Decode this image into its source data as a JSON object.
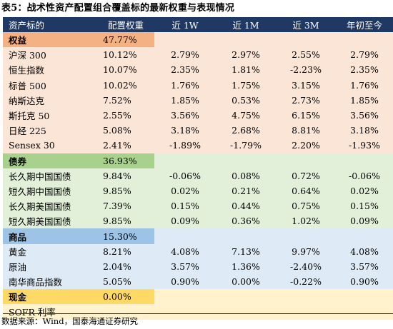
{
  "title": "表5：战术性资产配置组合覆盖标的最新权重与表现情况",
  "headers": [
    "资产标的",
    "配置权重",
    "近 1W",
    "近 1M",
    "近 3M",
    "年初至今"
  ],
  "rows": [
    {
      "name": "权益",
      "weight": "47.77%",
      "w1": "",
      "m1": "",
      "m3": "",
      "ytd": ""
    },
    {
      "name": "沪深 300",
      "weight": "10.12%",
      "w1": "2.79%",
      "m1": "2.97%",
      "m3": "2.55%",
      "ytd": "2.79%"
    },
    {
      "name": "恒生指数",
      "weight": "10.07%",
      "w1": "2.35%",
      "m1": "1.81%",
      "m3": "-2.23%",
      "ytd": "2.35%"
    },
    {
      "name": "标普 500",
      "weight": "10.02%",
      "w1": "1.76%",
      "m1": "1.75%",
      "m3": "3.15%",
      "ytd": "1.76%"
    },
    {
      "name": "纳斯达克",
      "weight": "7.52%",
      "w1": "1.85%",
      "m1": "0.53%",
      "m3": "2.73%",
      "ytd": "1.85%"
    },
    {
      "name": "斯托克 50",
      "weight": "2.55%",
      "w1": "3.56%",
      "m1": "4.75%",
      "m3": "6.15%",
      "ytd": "3.56%"
    },
    {
      "name": "日经 225",
      "weight": "5.08%",
      "w1": "3.18%",
      "m1": "2.68%",
      "m3": "8.81%",
      "ytd": "3.18%"
    },
    {
      "name": "Sensex 30",
      "weight": "2.41%",
      "w1": "-1.89%",
      "m1": "-1.79%",
      "m3": "2.20%",
      "ytd": "-1.93%"
    },
    {
      "name": "债券",
      "weight": "36.93%",
      "w1": "",
      "m1": "",
      "m3": "",
      "ytd": ""
    },
    {
      "name": "长久期中国国债",
      "weight": "9.84%",
      "w1": "-0.06%",
      "m1": "0.08%",
      "m3": "0.72%",
      "ytd": "-0.06%"
    },
    {
      "name": "短久期中国国债",
      "weight": "9.85%",
      "w1": "0.02%",
      "m1": "0.21%",
      "m3": "0.64%",
      "ytd": "0.02%"
    },
    {
      "name": "长久期美国国债",
      "weight": "7.39%",
      "w1": "0.15%",
      "m1": "0.44%",
      "m3": "0.75%",
      "ytd": "0.15%"
    },
    {
      "name": "短久期美国国债",
      "weight": "9.85%",
      "w1": "0.09%",
      "m1": "0.36%",
      "m3": "1.02%",
      "ytd": "0.09%"
    },
    {
      "name": "商品",
      "weight": "15.30%",
      "w1": "",
      "m1": "",
      "m3": "",
      "ytd": ""
    },
    {
      "name": "黄金",
      "weight": "8.21%",
      "w1": "4.08%",
      "m1": "7.13%",
      "m3": "9.97%",
      "ytd": "4.08%"
    },
    {
      "name": "原油",
      "weight": "2.04%",
      "w1": "3.57%",
      "m1": "1.36%",
      "m3": "-2.40%",
      "ytd": "3.57%"
    },
    {
      "name": "南华商品指数",
      "weight": "5.05%",
      "w1": "0.90%",
      "m1": "0.00%",
      "m3": "-0.22%",
      "ytd": "0.90%"
    },
    {
      "name": "现金",
      "weight": "0.00%",
      "w1": "",
      "m1": "",
      "m3": "",
      "ytd": ""
    },
    {
      "name": "SOFR 利率",
      "weight": "",
      "w1": "",
      "m1": "",
      "m3": "",
      "ytd": ""
    }
  ],
  "source": "数据来源：Wind，国泰海通证券研究",
  "colors": {
    "header": "#1f3864",
    "equity_category": "#f4b183",
    "equity_row": "#fbe5d6",
    "bond_category": "#a9d18e",
    "bond_row": "#e2f0d9",
    "commodity_category": "#9dc3e6",
    "commodity_row": "#deebf7",
    "cash_category": "#ffd966",
    "cash_row": "#fff2cc"
  }
}
